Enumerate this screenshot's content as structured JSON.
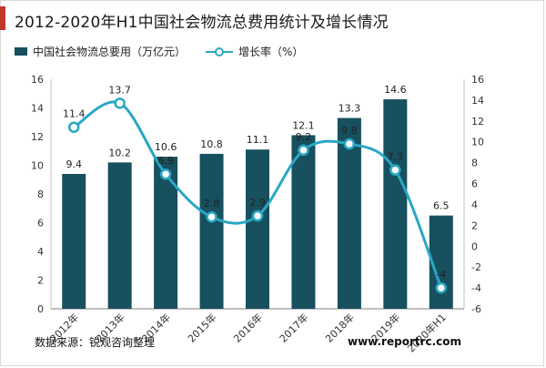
{
  "title": "2012-2020年H1中国社会物流总费用统计及增长情况",
  "legend": {
    "bar_label": "中国社会物流总要用（万亿元）",
    "line_label": "增长率（%）"
  },
  "source": "数据来源：锐观咨询整理",
  "watermark": "www.reportrc.com",
  "colors": {
    "bar": "#17505f",
    "line": "#2aa7c4",
    "title_accent": "#c0392b"
  },
  "chart_data": {
    "type": "bar+line",
    "categories": [
      "2012年",
      "2013年",
      "2014年",
      "2015年",
      "2016年",
      "2017年",
      "2018年",
      "2019年",
      "2020年H1"
    ],
    "series": [
      {
        "name": "中国社会物流总要用（万亿元）",
        "type": "bar",
        "axis": "left",
        "values": [
          9.4,
          10.2,
          10.6,
          10.8,
          11.1,
          12.1,
          13.3,
          14.6,
          6.5
        ],
        "labels": [
          "9.4",
          "10.2",
          "10.6",
          "10.8",
          "11.1",
          "12.1",
          "13.3",
          "14.6",
          "6.5"
        ]
      },
      {
        "name": "增长率（%）",
        "type": "line",
        "axis": "right",
        "smooth": true,
        "values": [
          11.4,
          13.7,
          6.9,
          2.8,
          2.9,
          9.2,
          9.8,
          7.3,
          -4
        ],
        "labels": [
          "11.4",
          "13.7",
          "6.9",
          "2.8",
          "2.9",
          "9.2",
          "9.8",
          "7.3",
          "-4"
        ]
      }
    ],
    "left_axis": {
      "min": 0,
      "max": 16,
      "step": 2,
      "tick_labels": [
        "0",
        "2",
        "4",
        "6",
        "8",
        "10",
        "12",
        "14",
        "16"
      ]
    },
    "right_axis": {
      "min": -6,
      "max": 16,
      "step": 2,
      "tick_labels": [
        "-6",
        "-4",
        "-2",
        "0",
        "2",
        "4",
        "6",
        "8",
        "10",
        "12",
        "14",
        "16"
      ]
    },
    "grid": false,
    "legend_position": "top-left"
  }
}
